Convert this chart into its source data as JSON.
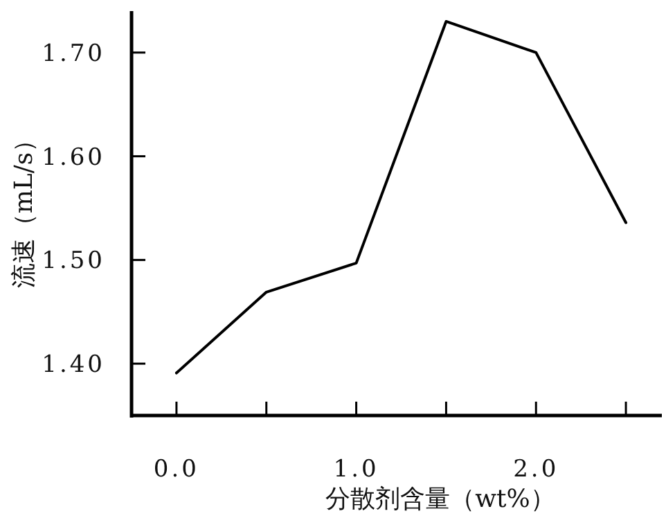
{
  "chart_data": {
    "type": "line",
    "xlabel": "分散剂含量（wt%）",
    "ylabel": "流速（mL/s）",
    "x": [
      0,
      0.5,
      1.0,
      1.5,
      2.0,
      2.5
    ],
    "series": [
      {
        "color": "#000000",
        "values": [
          1.391,
          1.469,
          1.497,
          1.73,
          1.7,
          1.536
        ]
      }
    ],
    "xlim": [
      -0.25,
      2.7
    ],
    "ylim": [
      1.35,
      1.74
    ],
    "xticks": [
      {
        "value": 0,
        "label": "0.0"
      },
      {
        "value": 0.5,
        "label": null
      },
      {
        "value": 1.0,
        "label": "1.0"
      },
      {
        "value": 1.5,
        "label": null
      },
      {
        "value": 2.0,
        "label": "2.0"
      },
      {
        "value": 2.5,
        "label": null
      }
    ],
    "yticks": [
      {
        "value": 1.4,
        "label": "1.40"
      },
      {
        "value": 1.5,
        "label": "1.50"
      },
      {
        "value": 1.6,
        "label": "1.60"
      },
      {
        "value": 1.7,
        "label": "1.70"
      }
    ],
    "grid": false,
    "marker": "none",
    "line_style": "solid"
  }
}
